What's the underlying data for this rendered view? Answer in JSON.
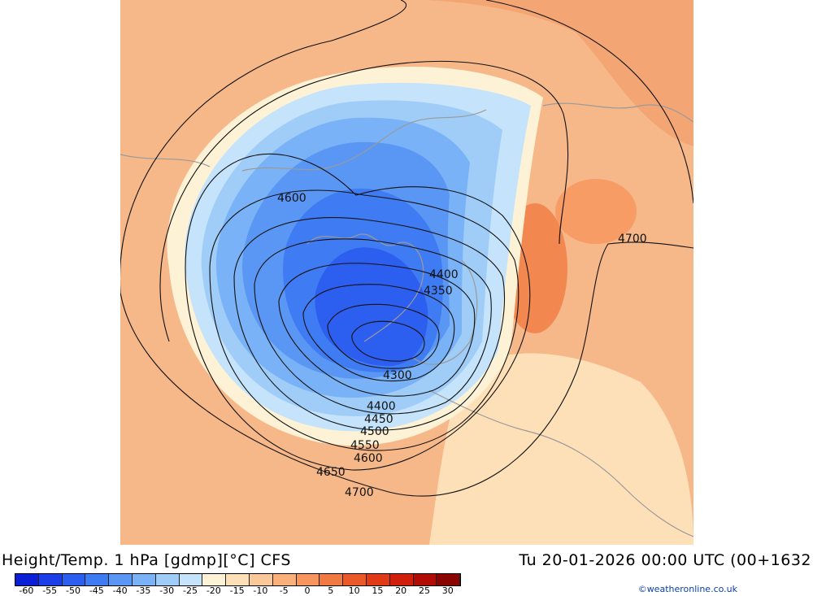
{
  "footer": {
    "title": "Height/Temp. 1 hPa [gdmp][°C] CFS",
    "datetime": "Tu 20-01-2026 00:00 UTC (00+1632"
  },
  "credit": "©weatheronline.co.uk",
  "colorbar": {
    "ticks": [
      "-60",
      "-55",
      "-50",
      "-45",
      "-40",
      "-35",
      "-30",
      "-25",
      "-20",
      "-15",
      "-10",
      "-5",
      "0",
      "5",
      "10",
      "15",
      "20",
      "25",
      "30"
    ],
    "colors": [
      "#0a1fd6",
      "#1c3ee8",
      "#2c5ef0",
      "#3f7bf2",
      "#5a97f4",
      "#79b2f6",
      "#9fcdf8",
      "#c5e3fb",
      "#fdf2d6",
      "#fde0b8",
      "#fbc89a",
      "#f9b07b",
      "#f6955d",
      "#f17a42",
      "#ea5a28",
      "#e03a16",
      "#d01f0c",
      "#b20c06",
      "#8a0402"
    ]
  },
  "contour_labels": [
    "4600",
    "4700",
    "4400",
    "4350",
    "4300",
    "4400",
    "4450",
    "4500",
    "4550",
    "4600",
    "4650",
    "4700"
  ],
  "colors": {
    "contour": "#111111",
    "coastline": "#9a9a9a",
    "warm_background": "#f7b889"
  }
}
